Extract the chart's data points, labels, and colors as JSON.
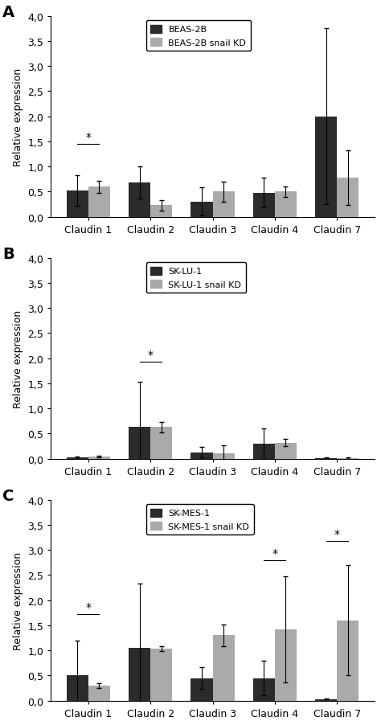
{
  "panels": [
    {
      "label": "A",
      "legend_labels": [
        "BEAS-2B",
        "BEAS-2B snail KD"
      ],
      "categories": [
        "Claudin 1",
        "Claudin 2",
        "Claudin 3",
        "Claudin 4",
        "Claudin 7"
      ],
      "dark_values": [
        0.52,
        0.68,
        0.3,
        0.48,
        2.0
      ],
      "light_values": [
        0.6,
        0.23,
        0.5,
        0.5,
        0.78
      ],
      "dark_errors": [
        0.3,
        0.32,
        0.28,
        0.3,
        1.75
      ],
      "light_errors": [
        0.12,
        0.1,
        0.2,
        0.1,
        0.55
      ],
      "sig_markers": [
        {
          "group": 0,
          "y": 1.45,
          "label": "*"
        }
      ]
    },
    {
      "label": "B",
      "legend_labels": [
        "SK-LU-1",
        "SK-LU-1 snail KD"
      ],
      "categories": [
        "Claudin 1",
        "Claudin 2",
        "Claudin 3",
        "Claudin 4",
        "Claudin 7"
      ],
      "dark_values": [
        0.02,
        0.63,
        0.13,
        0.3,
        0.01
      ],
      "light_values": [
        0.04,
        0.63,
        0.1,
        0.32,
        0.01
      ],
      "dark_errors": [
        0.02,
        0.9,
        0.1,
        0.3,
        0.01
      ],
      "light_errors": [
        0.02,
        0.1,
        0.17,
        0.07,
        0.01
      ],
      "sig_markers": [
        {
          "group": 1,
          "y": 1.93,
          "label": "*"
        }
      ]
    },
    {
      "label": "C",
      "legend_labels": [
        "SK-MES-1",
        "SK-MES-1 snail KD"
      ],
      "categories": [
        "Claudin 1",
        "Claudin 2",
        "Claudin 3",
        "Claudin 4",
        "Claudin 7"
      ],
      "dark_values": [
        0.5,
        1.05,
        0.45,
        0.45,
        0.02
      ],
      "light_values": [
        0.3,
        1.03,
        1.3,
        1.42,
        1.6
      ],
      "dark_errors": [
        0.7,
        1.28,
        0.22,
        0.35,
        0.02
      ],
      "light_errors": [
        0.05,
        0.05,
        0.22,
        1.05,
        1.1
      ],
      "sig_markers": [
        {
          "group": 0,
          "y": 1.72,
          "label": "*"
        },
        {
          "group": 3,
          "y": 2.8,
          "label": "*"
        },
        {
          "group": 4,
          "y": 3.18,
          "label": "*"
        }
      ]
    }
  ],
  "dark_color": "#2b2b2b",
  "light_color": "#aaaaaa",
  "bar_width": 0.35,
  "ylim": [
    0,
    4.0
  ],
  "yticks": [
    0.0,
    0.5,
    1.0,
    1.5,
    2.0,
    2.5,
    3.0,
    3.5,
    4.0
  ],
  "ytick_labels": [
    "0,0",
    "0,5",
    "1,0",
    "1,5",
    "2,0",
    "2,5",
    "3,0",
    "3,5",
    "4,0"
  ],
  "ylabel": "Relative expression",
  "figsize": [
    4.74,
    9.03
  ],
  "dpi": 100
}
